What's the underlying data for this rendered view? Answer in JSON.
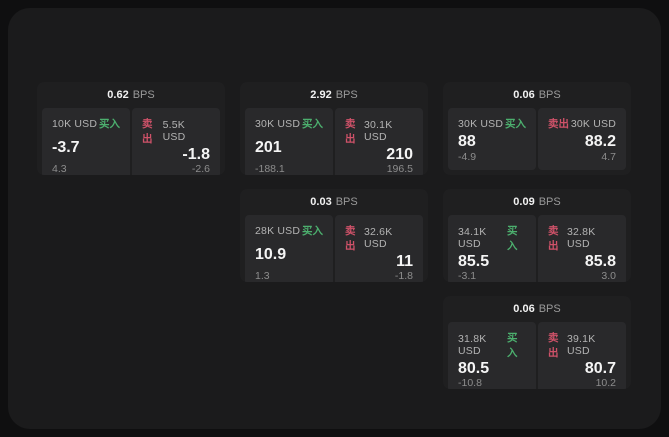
{
  "labels": {
    "buy": "买入",
    "sell": "卖出",
    "bps_unit": "BPS"
  },
  "colors": {
    "buy_green": "#4caf6e",
    "sell_red": "#cf5269",
    "panel_bg": "#1b1b1c",
    "card_bg": "#1f1f20",
    "pane_bg": "#29292b"
  },
  "cards": [
    {
      "bps": "0.62",
      "buy": {
        "notional": "10K USD",
        "value": "-3.7",
        "sub": "4.3"
      },
      "sell": {
        "notional": "5.5K USD",
        "value": "-1.8",
        "sub": "-2.6"
      }
    },
    {
      "bps": "2.92",
      "buy": {
        "notional": "30K USD",
        "value": "201",
        "sub": "-188.1"
      },
      "sell": {
        "notional": "30.1K USD",
        "value": "210",
        "sub": "196.5"
      }
    },
    {
      "bps": "0.06",
      "buy": {
        "notional": "30K USD",
        "value": "88",
        "sub": "-4.9"
      },
      "sell": {
        "notional": "30K USD",
        "value": "88.2",
        "sub": "4.7"
      }
    },
    {
      "bps": "0.03",
      "buy": {
        "notional": "28K USD",
        "value": "10.9",
        "sub": "1.3"
      },
      "sell": {
        "notional": "32.6K USD",
        "value": "11",
        "sub": "-1.8"
      }
    },
    {
      "bps": "0.09",
      "buy": {
        "notional": "34.1K USD",
        "value": "85.5",
        "sub": "-3.1"
      },
      "sell": {
        "notional": "32.8K USD",
        "value": "85.8",
        "sub": "3.0"
      }
    },
    {
      "bps": "0.06",
      "buy": {
        "notional": "31.8K USD",
        "value": "80.5",
        "sub": "-10.8"
      },
      "sell": {
        "notional": "39.1K USD",
        "value": "80.7",
        "sub": "10.2"
      }
    }
  ]
}
